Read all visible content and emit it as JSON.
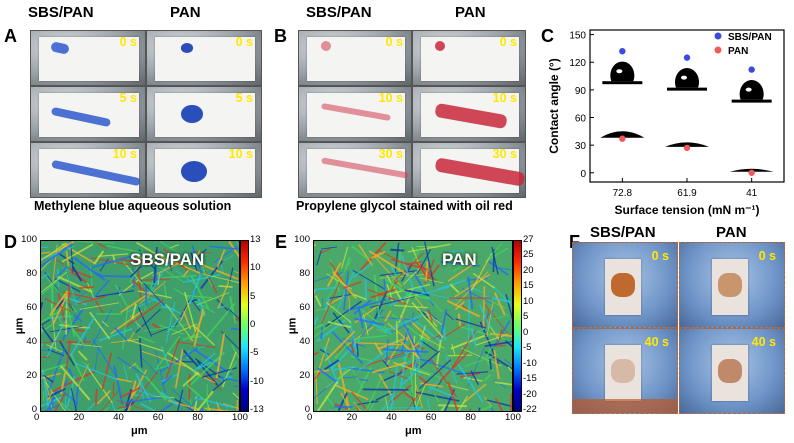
{
  "figure": {
    "panel_letters": {
      "a": "A",
      "b": "B",
      "c": "C",
      "d": "D",
      "e": "E",
      "f": "F"
    },
    "panel_a": {
      "col_headers": [
        "SBS/PAN",
        "PAN"
      ],
      "time_labels": [
        "0 s",
        "5 s",
        "10 s"
      ],
      "caption": "Methylene blue aqueous solution"
    },
    "panel_b": {
      "col_headers": [
        "SBS/PAN",
        "PAN"
      ],
      "time_labels": [
        "0 s",
        "10 s",
        "30 s"
      ],
      "caption": "Propylene glycol stained with oil red"
    },
    "panel_d": {
      "label": "SBS/PAN",
      "x_ticks": [
        "0",
        "20",
        "40",
        "60",
        "80",
        "100"
      ],
      "y_ticks": [
        "100",
        "80",
        "60",
        "40",
        "20",
        "0"
      ],
      "xlabel": "μm",
      "ylabel": "μm",
      "cbar_ticks": [
        "13",
        "10",
        "5",
        "0",
        "-5",
        "-10",
        "-13"
      ]
    },
    "panel_e": {
      "label": "PAN",
      "x_ticks": [
        "0",
        "20",
        "40",
        "60",
        "80",
        "100"
      ],
      "y_ticks": [
        "100",
        "80",
        "60",
        "40",
        "20",
        "0"
      ],
      "xlabel": "μm",
      "ylabel": "μm",
      "cbar_ticks": [
        "27",
        "25",
        "20",
        "15",
        "10",
        "5",
        "0",
        "-5",
        "-10",
        "-15",
        "-20",
        "-22"
      ]
    },
    "panel_f": {
      "col_headers": [
        "SBS/PAN",
        "PAN"
      ],
      "time_labels": [
        "0 s",
        "40 s"
      ]
    }
  },
  "chart_data": {
    "type": "scatter",
    "title": "",
    "xlabel": "Surface tension (mN m⁻¹)",
    "ylabel": "Contact angle (°)",
    "categories": [
      "72.8",
      "61.9",
      "41"
    ],
    "ylim": [
      -10,
      155
    ],
    "y_ticks": [
      0,
      30,
      60,
      90,
      120,
      150
    ],
    "series": [
      {
        "name": "SBS/PAN",
        "color": "#3b4be0",
        "values": [
          132,
          125,
          112
        ]
      },
      {
        "name": "PAN",
        "color": "#f05a5a",
        "values": [
          37,
          27,
          0
        ]
      }
    ],
    "legend_position": "top-right"
  }
}
